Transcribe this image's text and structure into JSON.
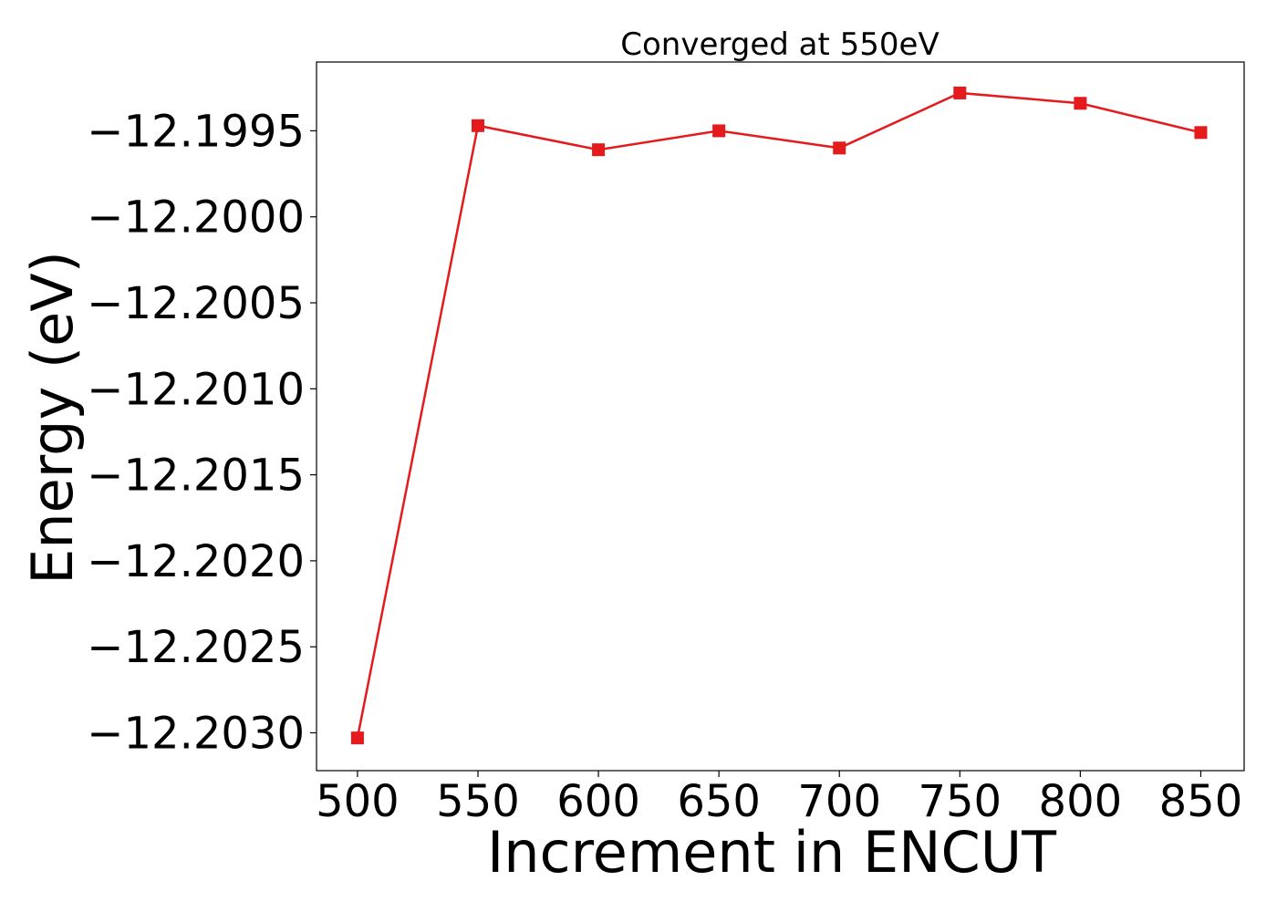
{
  "chart_data": {
    "type": "line",
    "title": "Converged at 550eV",
    "xlabel": "Increment in ENCUT",
    "ylabel": "Energy (eV)",
    "x": [
      500,
      550,
      600,
      650,
      700,
      750,
      800,
      850
    ],
    "series": [
      {
        "values": [
          -12.20303,
          -12.19947,
          -12.19961,
          -12.1995,
          -12.1996,
          -12.19928,
          -12.19934,
          -12.19951
        ]
      }
    ],
    "xticks": [
      500,
      550,
      600,
      650,
      700,
      750,
      800,
      850
    ],
    "yticks": [
      -12.203,
      -12.2025,
      -12.202,
      -12.2015,
      -12.201,
      -12.2005,
      -12.2,
      -12.1995
    ],
    "ytick_labels": [
      "−12.2030",
      "−12.2025",
      "−12.2020",
      "−12.2015",
      "−12.2010",
      "−12.2005",
      "−12.2000",
      "−12.1995"
    ],
    "xlim": [
      483,
      868
    ],
    "ylim": [
      -12.20322,
      -12.1991
    ],
    "marker": "square",
    "color": "#e41a1c",
    "grid": false,
    "legend": "none"
  }
}
